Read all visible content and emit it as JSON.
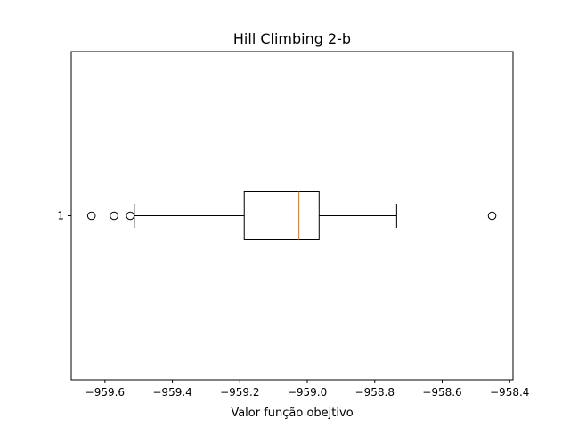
{
  "chart_data": {
    "type": "boxplot",
    "orientation": "horizontal",
    "title": "Hill Climbing 2-b",
    "xlabel": "Valor função obejtivo",
    "ylabel": "",
    "xlim": [
      -959.7,
      -958.39
    ],
    "x_ticks": [
      -959.6,
      -959.4,
      -959.2,
      -959.0,
      -958.8,
      -958.6,
      -958.4
    ],
    "x_tick_labels": [
      "−959.6",
      "−959.4",
      "−959.2",
      "−959.0",
      "−958.8",
      "−958.6",
      "−958.4"
    ],
    "categories": [
      "1"
    ],
    "boxes": [
      {
        "label": "1",
        "whisker_low": -959.513,
        "q1": -959.187,
        "median": -959.025,
        "q3": -958.965,
        "whisker_high": -958.735,
        "outliers": [
          -959.64,
          -959.573,
          -959.525,
          -958.452
        ]
      }
    ],
    "colors": {
      "box": "#000000",
      "median": "#ff7f0e",
      "outlier": "#000000"
    },
    "grid": false,
    "legend": "none"
  }
}
